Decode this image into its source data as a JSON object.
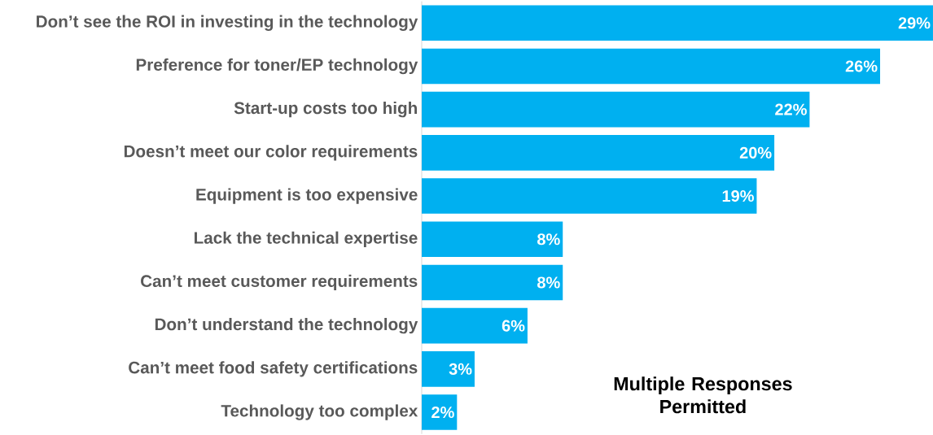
{
  "chart_data": {
    "type": "bar",
    "orientation": "horizontal",
    "categories": [
      "Don’t see the ROI in investing in the technology",
      "Preference for toner/EP technology",
      "Start-up costs too high",
      "Doesn’t meet our color requirements",
      "Equipment is too expensive",
      "Lack the technical expertise",
      "Can’t meet customer requirements",
      "Don’t understand the technology",
      "Can’t meet food safety certifications",
      "Technology too complex"
    ],
    "values": [
      29,
      26,
      22,
      20,
      19,
      8,
      8,
      6,
      3,
      2
    ],
    "value_labels": [
      "29%",
      "26%",
      "22%",
      "20%",
      "19%",
      "8%",
      "8%",
      "6%",
      "3%",
      "2%"
    ],
    "color": "#00b0f0",
    "annotations": [
      {
        "text": "Multiple Responses Permitted"
      }
    ]
  }
}
